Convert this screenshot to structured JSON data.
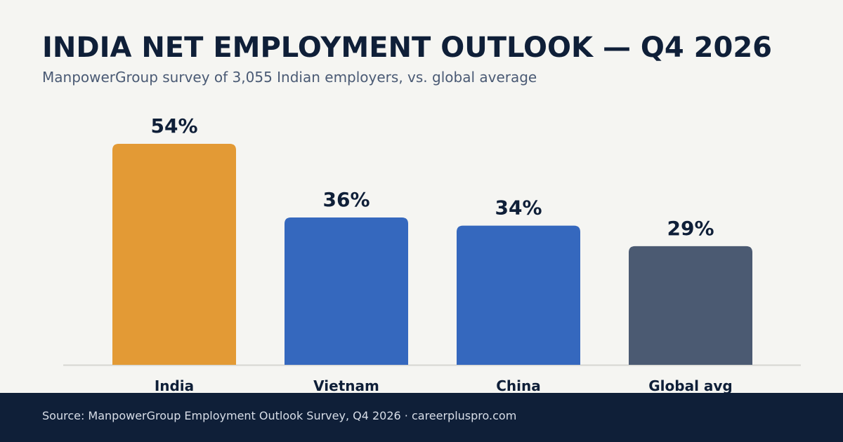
{
  "header": {
    "title": "INDIA NET EMPLOYMENT OUTLOOK — Q4 2026",
    "subtitle": "ManpowerGroup survey of 3,055 Indian employers, vs. global average"
  },
  "chart_data": {
    "type": "bar",
    "categories": [
      "India",
      "Vietnam",
      "China",
      "Global avg"
    ],
    "values": [
      54,
      36,
      34,
      29
    ],
    "value_labels": [
      "54%",
      "36%",
      "34%",
      "29%"
    ],
    "bar_colors": [
      "#e39a35",
      "#3568be",
      "#3568be",
      "#4b5a72"
    ],
    "title": "INDIA NET EMPLOYMENT OUTLOOK — Q4 2026",
    "subtitle": "ManpowerGroup survey of 3,055 Indian employers, vs. global average",
    "xlabel": "",
    "ylabel": "",
    "ylim": [
      0,
      54
    ],
    "grid": false,
    "legend": "none"
  },
  "footer": {
    "text": "Source: ManpowerGroup Employment Outlook Survey, Q4 2026  ·  careerpluspro.com"
  }
}
